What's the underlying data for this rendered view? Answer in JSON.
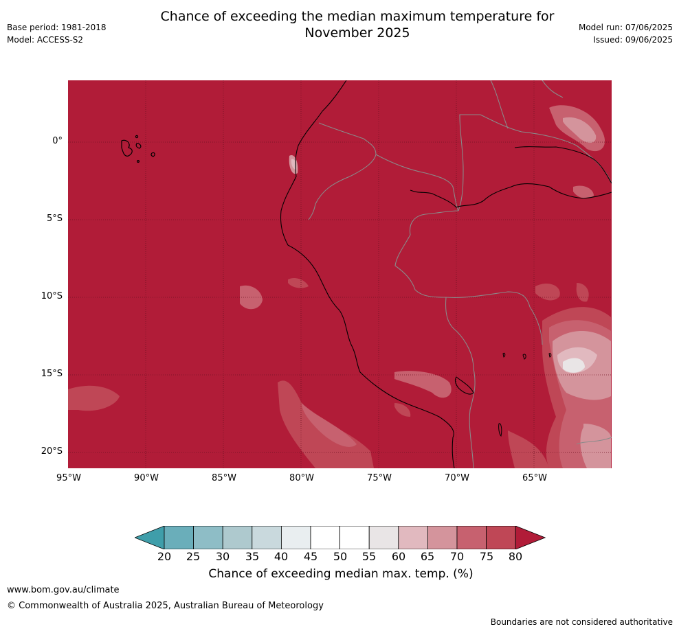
{
  "title": {
    "line1": "Chance of exceeding the median maximum temperature for",
    "line2": "November 2025"
  },
  "meta_left": {
    "base_period": "Base period: 1981-2018",
    "model": "Model: ACCESS-S2"
  },
  "meta_right": {
    "model_run": "Model run: 07/06/2025",
    "issued": "Issued: 09/06/2025"
  },
  "map": {
    "region": "Western South America (Ecuador, Peru, Bolivia, western Brazil) and eastern Pacific incl. Galápagos",
    "latitude_labels": [
      "0°",
      "5°S",
      "10°S",
      "15°S",
      "20°S"
    ],
    "longitude_labels": [
      "95°W",
      "90°W",
      "85°W",
      "80°W",
      "75°W",
      "70°W",
      "65°W"
    ],
    "dominant_category": "80",
    "colors": {
      "ocean_land_fill": "#b11c38",
      "coastline": "#000000",
      "borders": "#8a8a8a",
      "gridlines": "#6e1222"
    }
  },
  "colorbar": {
    "ticks": [
      "20",
      "25",
      "30",
      "35",
      "40",
      "45",
      "50",
      "55",
      "60",
      "65",
      "70",
      "75",
      "80"
    ],
    "colors": [
      "#3f9eaa",
      "#6aaeba",
      "#8ebdc6",
      "#aec9ce",
      "#c9d9dd",
      "#e9eef0",
      "#ffffff",
      "#ffffff",
      "#e9e5e6",
      "#e1b9bf",
      "#d4949c",
      "#c7616f",
      "#bf4756",
      "#b11c38"
    ],
    "label": "Chance of exceeding median max. temp. (%)"
  },
  "footer": {
    "url": "www.bom.gov.au/climate",
    "copyright": "© Commonwealth of Australia 2025, Australian Bureau of Meteorology",
    "note": "Boundaries are not considered authoritative"
  }
}
